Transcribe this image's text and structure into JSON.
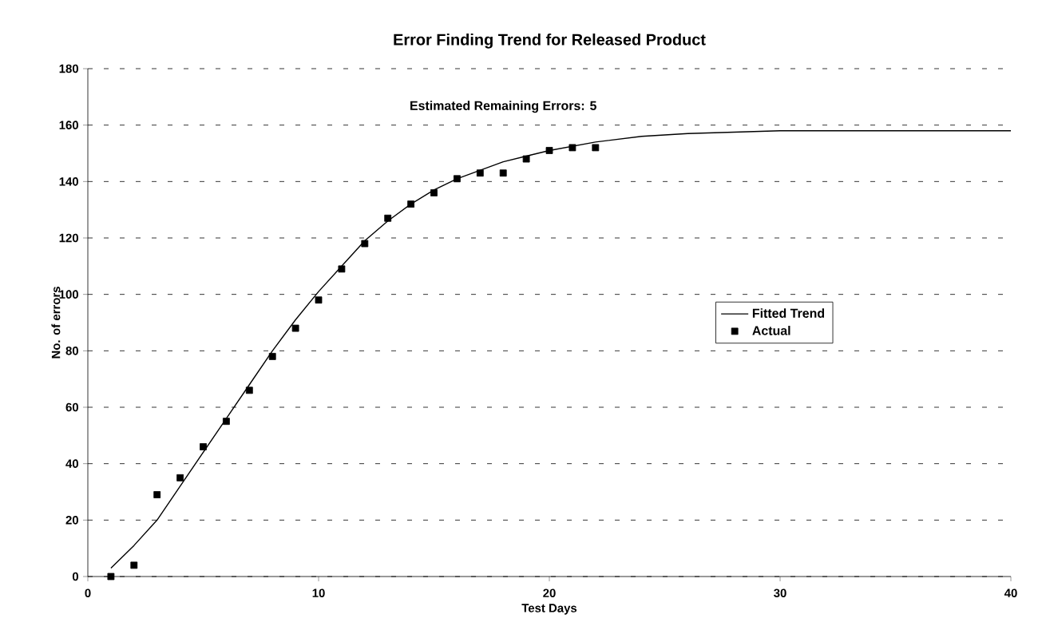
{
  "chart_data": {
    "type": "line",
    "title": "Error Finding Trend for Released Product",
    "xlabel": "Test Days",
    "ylabel": "No. of errors",
    "annotations": [
      "Estimated Remaining Errors: 5"
    ],
    "series": [
      {
        "name": "Fitted Trend",
        "color": "#000000",
        "marker": "none",
        "line_style": "solid",
        "x": [
          1,
          2,
          3,
          4,
          5,
          6,
          7,
          8,
          9,
          10,
          11,
          12,
          13,
          14,
          15,
          16,
          17,
          18,
          19,
          20,
          22,
          24,
          26,
          28,
          30,
          35,
          40
        ],
        "values": [
          3,
          11,
          20,
          32,
          44,
          56,
          68,
          80,
          91,
          101,
          110,
          119,
          126,
          132,
          137,
          141,
          144,
          147,
          149,
          151,
          154,
          156,
          157,
          157.5,
          158,
          158,
          158
        ]
      },
      {
        "name": "Actual",
        "type": "scatter",
        "color": "#000000",
        "marker": "square",
        "x": [
          1,
          2,
          3,
          4,
          5,
          6,
          7,
          8,
          9,
          10,
          11,
          12,
          13,
          14,
          15,
          16,
          17,
          18,
          19,
          20,
          21,
          22
        ],
        "values": [
          0,
          4,
          29,
          35,
          46,
          55,
          66,
          78,
          88,
          98,
          109,
          118,
          127,
          132,
          136,
          141,
          143,
          143,
          148,
          151,
          152,
          152
        ]
      }
    ],
    "xlim": [
      0,
      40
    ],
    "ylim": [
      0,
      180
    ],
    "xticks": [
      0,
      10,
      20,
      30,
      40
    ],
    "yticks": [
      0,
      20,
      40,
      60,
      80,
      100,
      120,
      140,
      160,
      180
    ],
    "grid": "y",
    "legend": "right"
  }
}
